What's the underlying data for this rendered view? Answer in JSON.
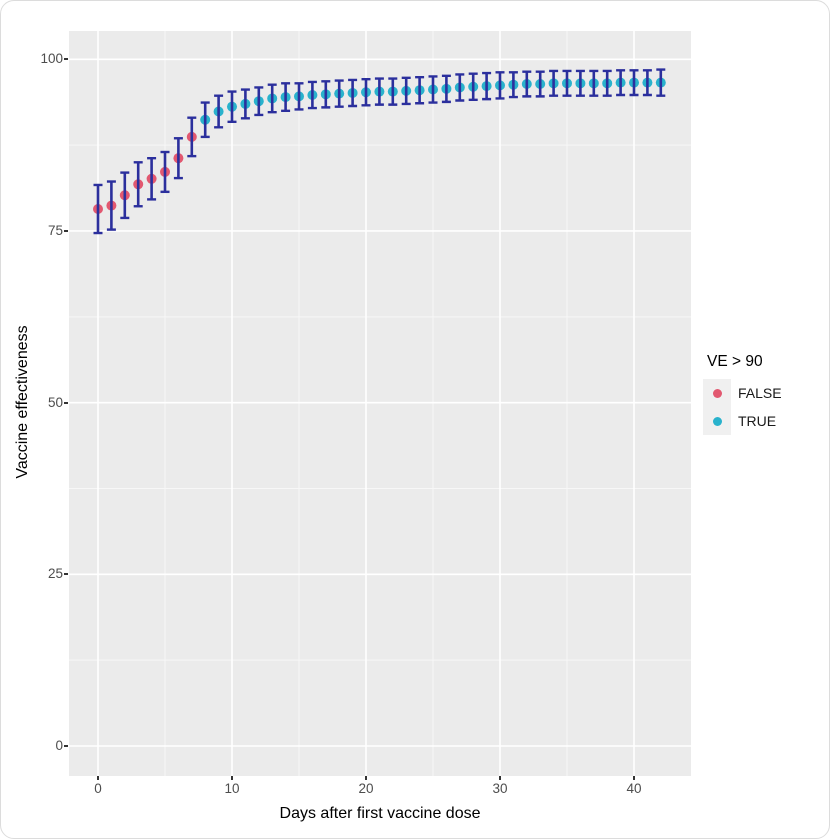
{
  "chart_data": {
    "type": "scatter",
    "title": "",
    "xlabel": "Days after first vaccine dose",
    "ylabel": "Vaccine effectiveness",
    "x_ticks": [
      0,
      10,
      20,
      30,
      40
    ],
    "y_ticks": [
      0,
      25,
      50,
      75,
      100
    ],
    "x_minor_ticks": [
      5,
      15,
      25,
      35
    ],
    "y_minor_ticks": [
      12.5,
      37.5,
      62.5,
      87.5
    ],
    "xlim": [
      -2.2,
      44.3
    ],
    "ylim": [
      -4.4,
      104.2
    ],
    "grid": "white major and minor gridlines on grey panel",
    "threshold": 90,
    "legend": {
      "title": "VE > 90",
      "position": "right",
      "entries": [
        {
          "label": "FALSE",
          "color": "#e25870"
        },
        {
          "label": "TRUE",
          "color": "#29b2cc"
        }
      ]
    },
    "x": [
      0,
      1,
      2,
      3,
      4,
      5,
      6,
      7,
      8,
      9,
      10,
      11,
      12,
      13,
      14,
      15,
      16,
      17,
      18,
      19,
      20,
      21,
      22,
      23,
      24,
      25,
      26,
      27,
      28,
      29,
      30,
      31,
      32,
      33,
      34,
      35,
      36,
      37,
      38,
      39,
      40,
      41,
      42
    ],
    "y": [
      78.2,
      78.7,
      80.2,
      81.8,
      82.6,
      83.6,
      85.6,
      88.7,
      91.2,
      92.4,
      93.1,
      93.5,
      93.9,
      94.3,
      94.5,
      94.6,
      94.8,
      94.9,
      95.0,
      95.1,
      95.2,
      95.3,
      95.3,
      95.4,
      95.5,
      95.6,
      95.7,
      95.9,
      96.0,
      96.1,
      96.2,
      96.3,
      96.4,
      96.4,
      96.5,
      96.5,
      96.5,
      96.5,
      96.5,
      96.6,
      96.6,
      96.6,
      96.6
    ],
    "ci_low": [
      74.7,
      75.2,
      76.9,
      78.6,
      79.6,
      80.7,
      82.7,
      85.9,
      88.7,
      90.1,
      90.9,
      91.4,
      91.9,
      92.3,
      92.5,
      92.7,
      92.9,
      93.0,
      93.1,
      93.2,
      93.3,
      93.4,
      93.4,
      93.5,
      93.6,
      93.7,
      93.8,
      94.0,
      94.1,
      94.2,
      94.3,
      94.5,
      94.6,
      94.6,
      94.7,
      94.7,
      94.7,
      94.7,
      94.7,
      94.8,
      94.8,
      94.8,
      94.7
    ],
    "ci_high": [
      81.7,
      82.2,
      83.5,
      85.0,
      85.6,
      86.5,
      88.5,
      91.5,
      93.7,
      94.7,
      95.3,
      95.6,
      95.9,
      96.3,
      96.5,
      96.5,
      96.7,
      96.8,
      96.9,
      97.0,
      97.1,
      97.2,
      97.2,
      97.3,
      97.4,
      97.5,
      97.6,
      97.8,
      97.9,
      98.0,
      98.1,
      98.1,
      98.2,
      98.2,
      98.3,
      98.3,
      98.3,
      98.3,
      98.3,
      98.4,
      98.4,
      98.4,
      98.5
    ],
    "group": [
      "FALSE",
      "FALSE",
      "FALSE",
      "FALSE",
      "FALSE",
      "FALSE",
      "FALSE",
      "FALSE",
      "TRUE",
      "TRUE",
      "TRUE",
      "TRUE",
      "TRUE",
      "TRUE",
      "TRUE",
      "TRUE",
      "TRUE",
      "TRUE",
      "TRUE",
      "TRUE",
      "TRUE",
      "TRUE",
      "TRUE",
      "TRUE",
      "TRUE",
      "TRUE",
      "TRUE",
      "TRUE",
      "TRUE",
      "TRUE",
      "TRUE",
      "TRUE",
      "TRUE",
      "TRUE",
      "TRUE",
      "TRUE",
      "TRUE",
      "TRUE",
      "TRUE",
      "TRUE",
      "TRUE",
      "TRUE",
      "TRUE"
    ],
    "colors": {
      "panel_bg": "#ebebeb",
      "grid_major": "#ffffff",
      "grid_minor": "#f7f7f7",
      "errorbar": "#2b2f9d",
      "point_false": "#e25870",
      "point_true": "#29b2cc",
      "tick_label": "#4d4d4d",
      "axis_title": "#000000",
      "legend_key_bg": "#f0f0f0"
    }
  }
}
